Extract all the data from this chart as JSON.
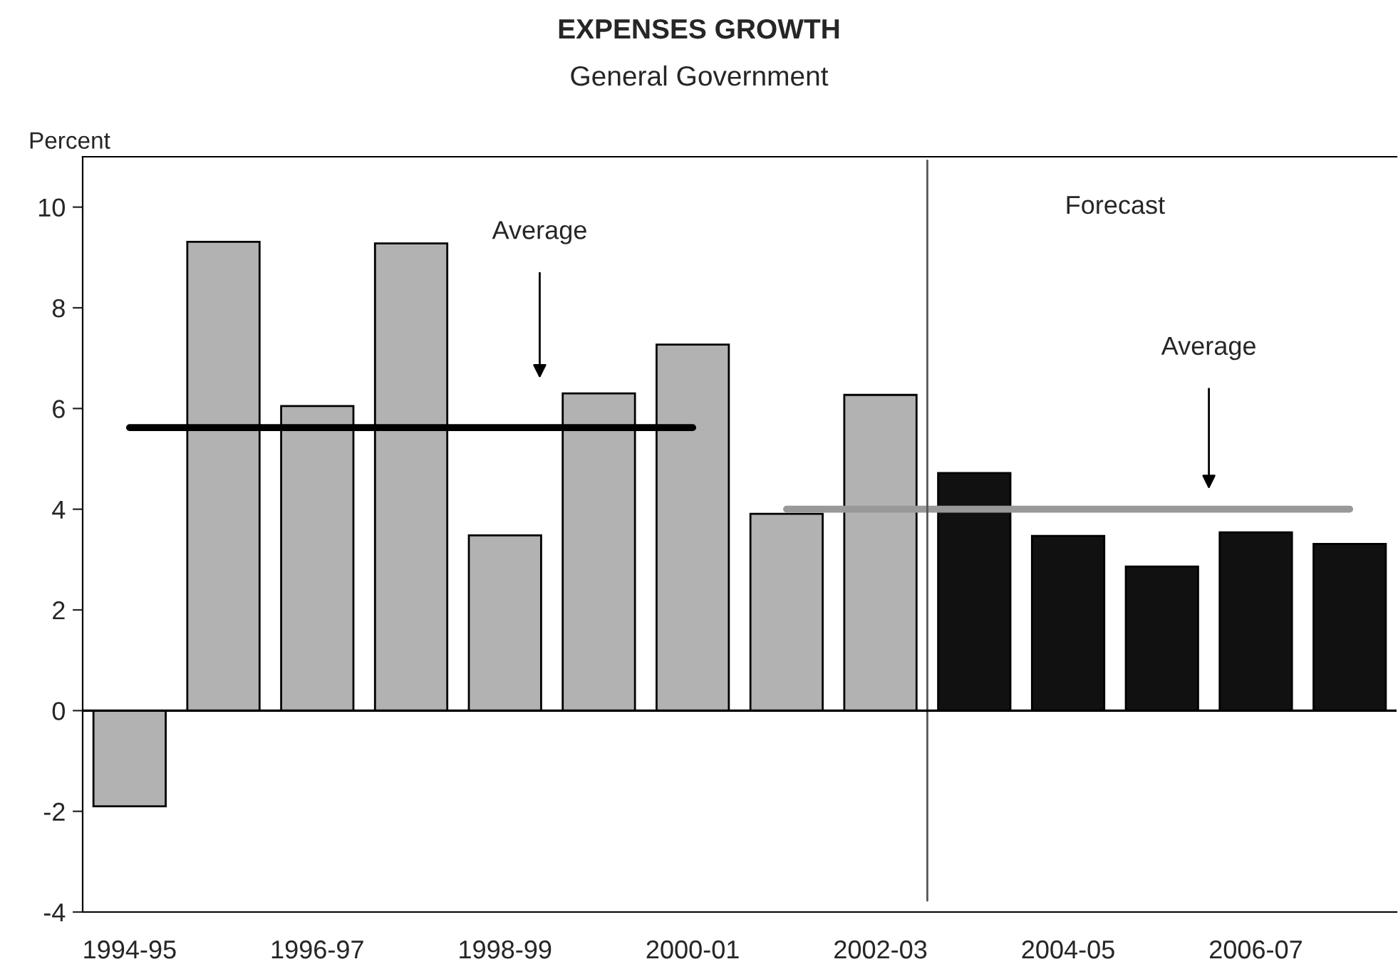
{
  "chart_data": {
    "type": "bar",
    "title": "EXPENSES GROWTH",
    "subtitle": "General Government",
    "ylabel": "Percent",
    "categories": [
      "1994-95",
      null,
      "1996-97",
      null,
      "1998-99",
      null,
      "2000-01",
      null,
      "2002-03",
      null,
      "2004-05",
      null,
      "2006-07",
      null
    ],
    "series": [
      {
        "values": [
          -1.9,
          9.31,
          6.05,
          9.28,
          3.48,
          6.3,
          7.27,
          3.91,
          6.27,
          4.72,
          3.47,
          2.86,
          3.54,
          3.31
        ],
        "colors": [
          "#b2b2b2",
          "#b2b2b2",
          "#b2b2b2",
          "#b2b2b2",
          "#b2b2b2",
          "#b2b2b2",
          "#b2b2b2",
          "#b2b2b2",
          "#b2b2b2",
          "#111111",
          "#111111",
          "#111111",
          "#111111",
          "#111111"
        ]
      },
      {
        "type": "line",
        "color": "#000000",
        "values": [
          5.62,
          5.62,
          5.62,
          5.62,
          5.62,
          5.62,
          5.62,
          null,
          null,
          null,
          null,
          null,
          null,
          null
        ]
      },
      {
        "type": "line",
        "color": "#999999",
        "values": [
          null,
          null,
          null,
          null,
          null,
          null,
          null,
          4.0,
          4.0,
          4.0,
          4.0,
          4.0,
          4.0,
          4.0
        ]
      }
    ],
    "ylim": [
      -4,
      11
    ],
    "yticks": [
      -4,
      -2,
      0,
      2,
      4,
      6,
      8,
      10
    ],
    "grid": false,
    "legend": false,
    "ref_lines": [
      {
        "axis": "y",
        "value": 0,
        "color": "#000000"
      }
    ],
    "annotations": [
      "Average",
      "Forecast",
      "Average"
    ]
  }
}
